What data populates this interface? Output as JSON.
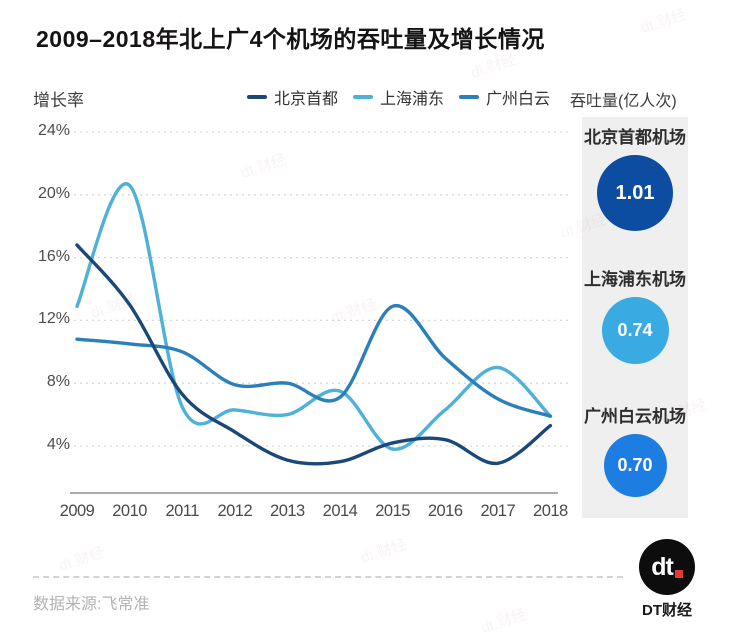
{
  "title": "2009–2018年北上广4个机场的吞吐量及增长情况",
  "axes": {
    "left_label": "增长率",
    "right_label": "吞吐量(亿人次)"
  },
  "legend": [
    {
      "label": "北京首都",
      "color": "#1b4878"
    },
    {
      "label": "上海浦东",
      "color": "#4fb0d8"
    },
    {
      "label": "广州白云",
      "color": "#2b80b9"
    }
  ],
  "chart_data": {
    "type": "line",
    "title": "2009–2018年北上广4个机场的吞吐量及增长情况",
    "xlabel": "",
    "ylabel": "增长率",
    "categories": [
      "2009",
      "2010",
      "2011",
      "2012",
      "2013",
      "2014",
      "2015",
      "2016",
      "2017",
      "2018"
    ],
    "yticks": [
      24,
      20,
      16,
      12,
      8,
      4
    ],
    "ytick_labels": [
      "24%",
      "20%",
      "16%",
      "12%",
      "8%",
      "4%"
    ],
    "ylim": [
      1.5,
      25.5
    ],
    "grid": "horizontal-dashed",
    "legend_position": "top",
    "unit": "percent",
    "series": [
      {
        "name": "北京首都",
        "color": "#1b4878",
        "values": [
          16.8,
          13.0,
          7.3,
          4.9,
          3.1,
          3.0,
          4.2,
          4.4,
          2.9,
          5.3
        ]
      },
      {
        "name": "上海浦东",
        "color": "#4fb0d8",
        "values": [
          12.9,
          20.6,
          6.5,
          6.3,
          6.0,
          7.5,
          3.8,
          6.3,
          9.0,
          5.9
        ]
      },
      {
        "name": "广州白云",
        "color": "#2b80b9",
        "values": [
          10.8,
          10.5,
          10.0,
          7.9,
          8.0,
          7.1,
          12.9,
          9.6,
          7.0,
          5.9
        ]
      }
    ]
  },
  "panel": {
    "cards": [
      {
        "name": "北京首都机场",
        "value": "1.01",
        "color": "#0c4da2"
      },
      {
        "name": "上海浦东机场",
        "value": "0.74",
        "color": "#3aabe2"
      },
      {
        "name": "广州白云机场",
        "value": "0.70",
        "color": "#1e7de0"
      }
    ]
  },
  "footer": {
    "source": "数据来源:飞常准",
    "logo_text": "dt",
    "logo_caption": "DT财经"
  },
  "watermark": "dt.财经",
  "colors": {
    "grid": "#d8d8d8",
    "axis": "#8f8f8f",
    "panel_bg": "#efefef"
  }
}
